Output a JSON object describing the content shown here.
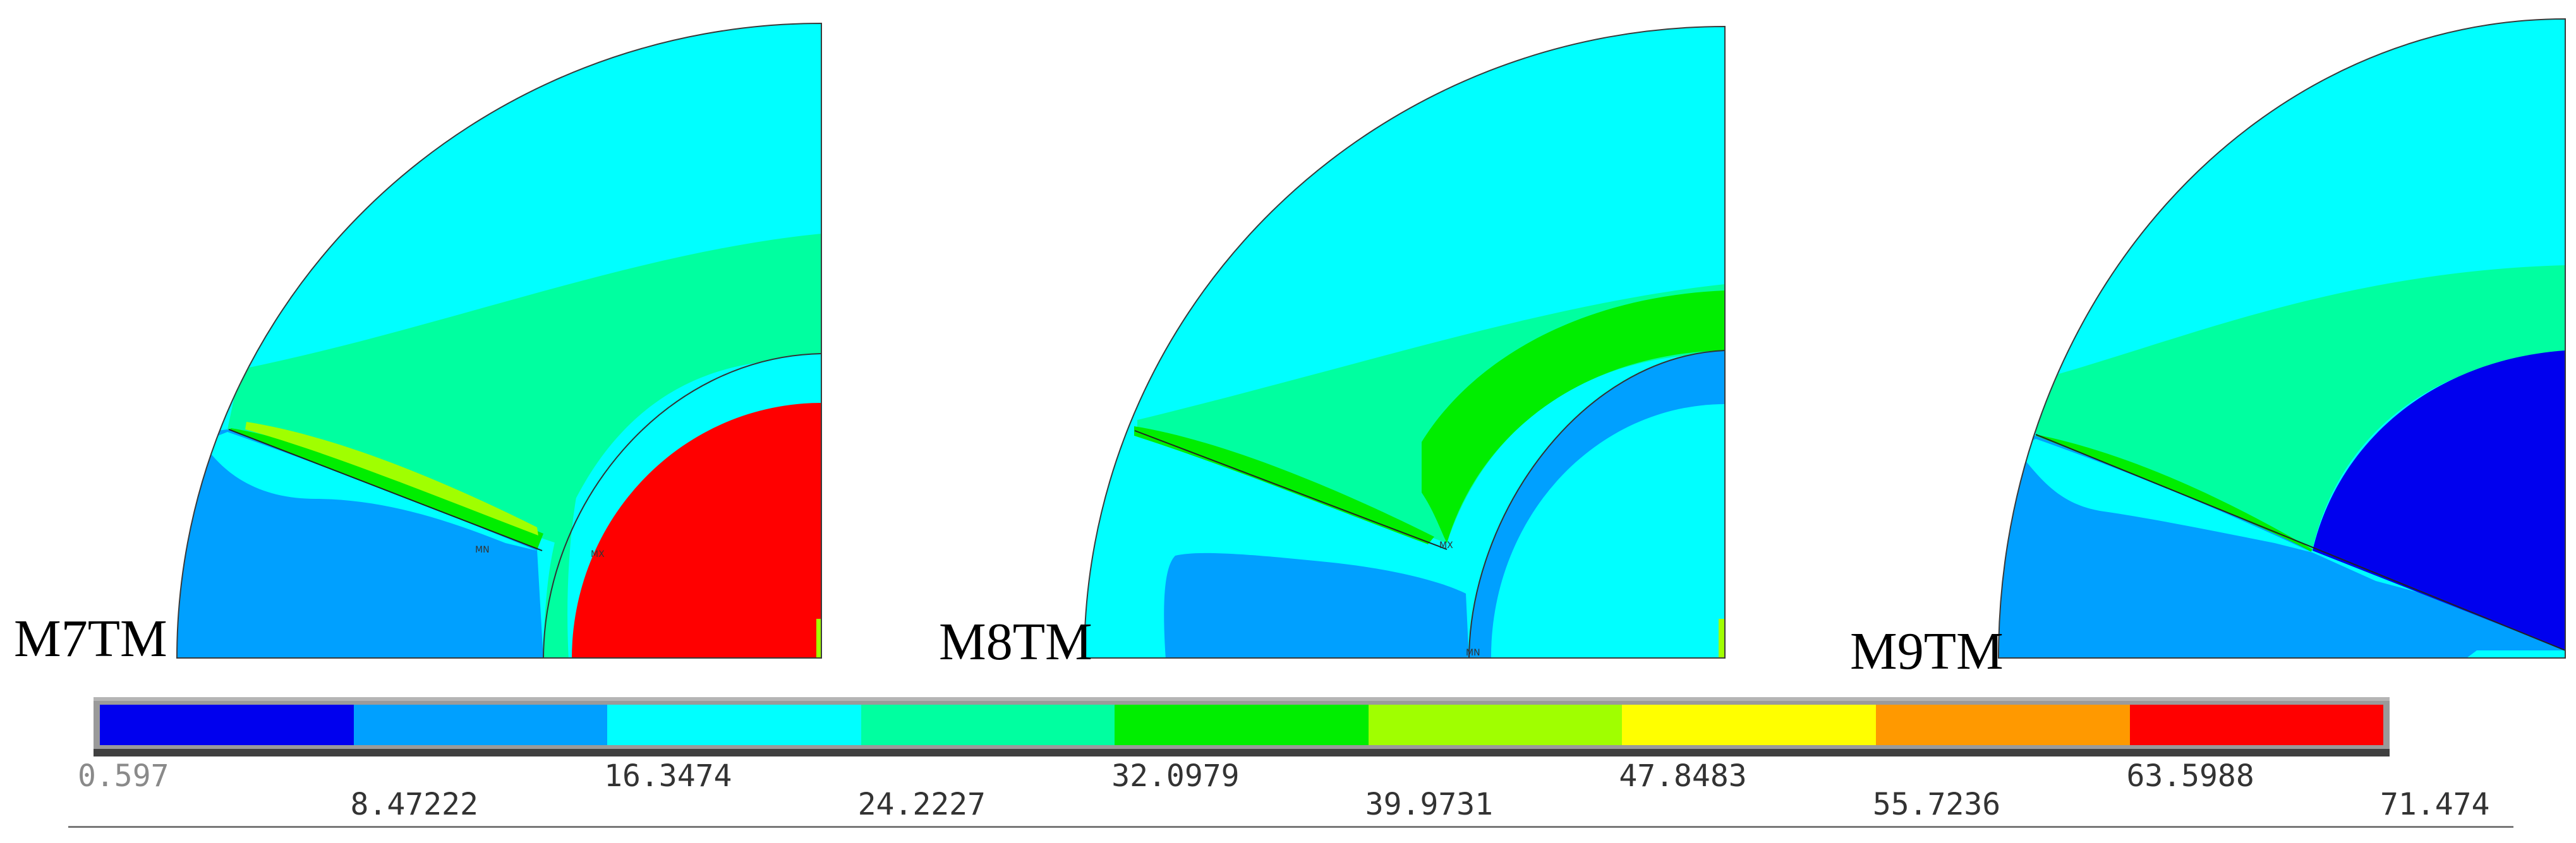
{
  "figure": {
    "panels": [
      {
        "label": "M7TM",
        "small_labels": [
          "MN",
          "MX"
        ]
      },
      {
        "label": "M8TM",
        "small_labels": [
          "MX",
          "MN"
        ]
      },
      {
        "label": "M9TM",
        "small_labels": []
      }
    ],
    "colors": {
      "blue": "#0000ee",
      "light_blue": "#00a0ff",
      "cyan": "#00ffff",
      "sea_green": "#00ffa0",
      "green": "#00ee00",
      "yellow_green": "#a0ff00",
      "yellow": "#ffff00",
      "orange": "#ff9900",
      "red": "#ff0000"
    }
  },
  "legend": {
    "colors": [
      "#0000ee",
      "#00a0ff",
      "#00ffff",
      "#00ffa0",
      "#00ee00",
      "#a0ff00",
      "#ffff00",
      "#ff9900",
      "#ff0000"
    ],
    "ticks": [
      "0.597",
      "8.47222",
      "16.3474",
      "24.2227",
      "32.0979",
      "39.9731",
      "47.8483",
      "55.7236",
      "63.5988",
      "71.474"
    ]
  }
}
